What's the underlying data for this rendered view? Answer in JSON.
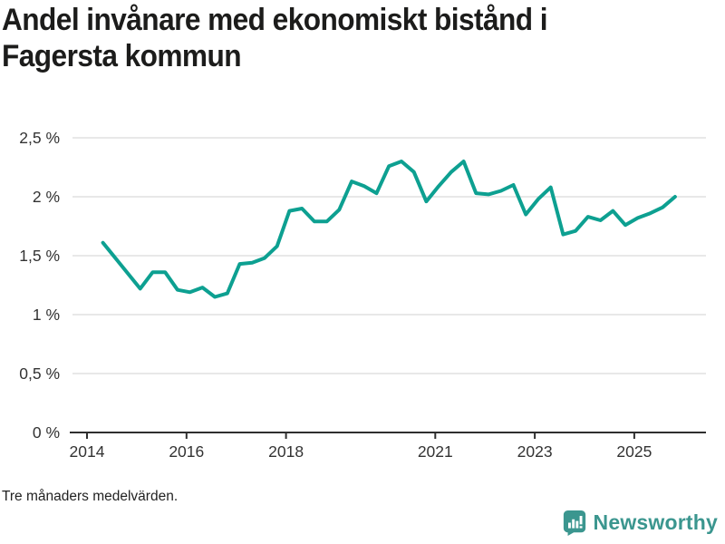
{
  "header": {
    "title_line1": "Andel invånare med ekonomiskt bistånd i",
    "title_line2": "Fagersta kommun"
  },
  "footnote": "Tre månaders medelvärden.",
  "brand": {
    "name": "Newsworthy",
    "color": "#3b968f"
  },
  "colors": {
    "line": "#0da091",
    "grid": "#e1e1e1",
    "axis": "#2f2f2f",
    "tick_text": "#333333",
    "title_text": "#1c1c1b"
  },
  "chart_data": {
    "type": "line",
    "title": "Andel invånare med ekonomiskt bistånd i Fagersta kommun",
    "note": "Tre månaders medelvärden.",
    "unit": "%",
    "grid": "horizontal",
    "legend": "none",
    "xlim": [
      2013.65,
      2026.45
    ],
    "ylim": [
      0,
      2.6
    ],
    "x_ticks": [
      {
        "value": 2014,
        "label": "2014"
      },
      {
        "value": 2016,
        "label": "2016"
      },
      {
        "value": 2018,
        "label": "2018"
      },
      {
        "value": 2021,
        "label": "2021"
      },
      {
        "value": 2023,
        "label": "2023"
      },
      {
        "value": 2025,
        "label": "2025"
      }
    ],
    "y_ticks": [
      {
        "value": 0,
        "label": "0 %"
      },
      {
        "value": 0.5,
        "label": "0,5 %"
      },
      {
        "value": 1,
        "label": "1 %"
      },
      {
        "value": 1.5,
        "label": "1,5 %"
      },
      {
        "value": 2,
        "label": "2 %"
      },
      {
        "value": 2.5,
        "label": "2,5 %"
      }
    ],
    "series": [
      {
        "name": "Andel invånare med ekonomiskt bistånd, Fagersta kommun",
        "color": "#0da091",
        "x_start": 2014.32,
        "x_step": 0.25,
        "values": [
          1.61,
          1.48,
          1.35,
          1.22,
          1.36,
          1.36,
          1.21,
          1.19,
          1.23,
          1.15,
          1.18,
          1.43,
          1.44,
          1.48,
          1.58,
          1.88,
          1.9,
          1.79,
          1.79,
          1.89,
          2.13,
          2.09,
          2.03,
          2.26,
          2.3,
          2.21,
          1.96,
          2.09,
          2.21,
          2.3,
          2.03,
          2.02,
          2.05,
          2.1,
          1.85,
          1.98,
          2.08,
          1.68,
          1.71,
          1.83,
          1.8,
          1.88,
          1.76,
          1.82,
          1.86,
          1.91,
          2.0
        ]
      }
    ]
  }
}
